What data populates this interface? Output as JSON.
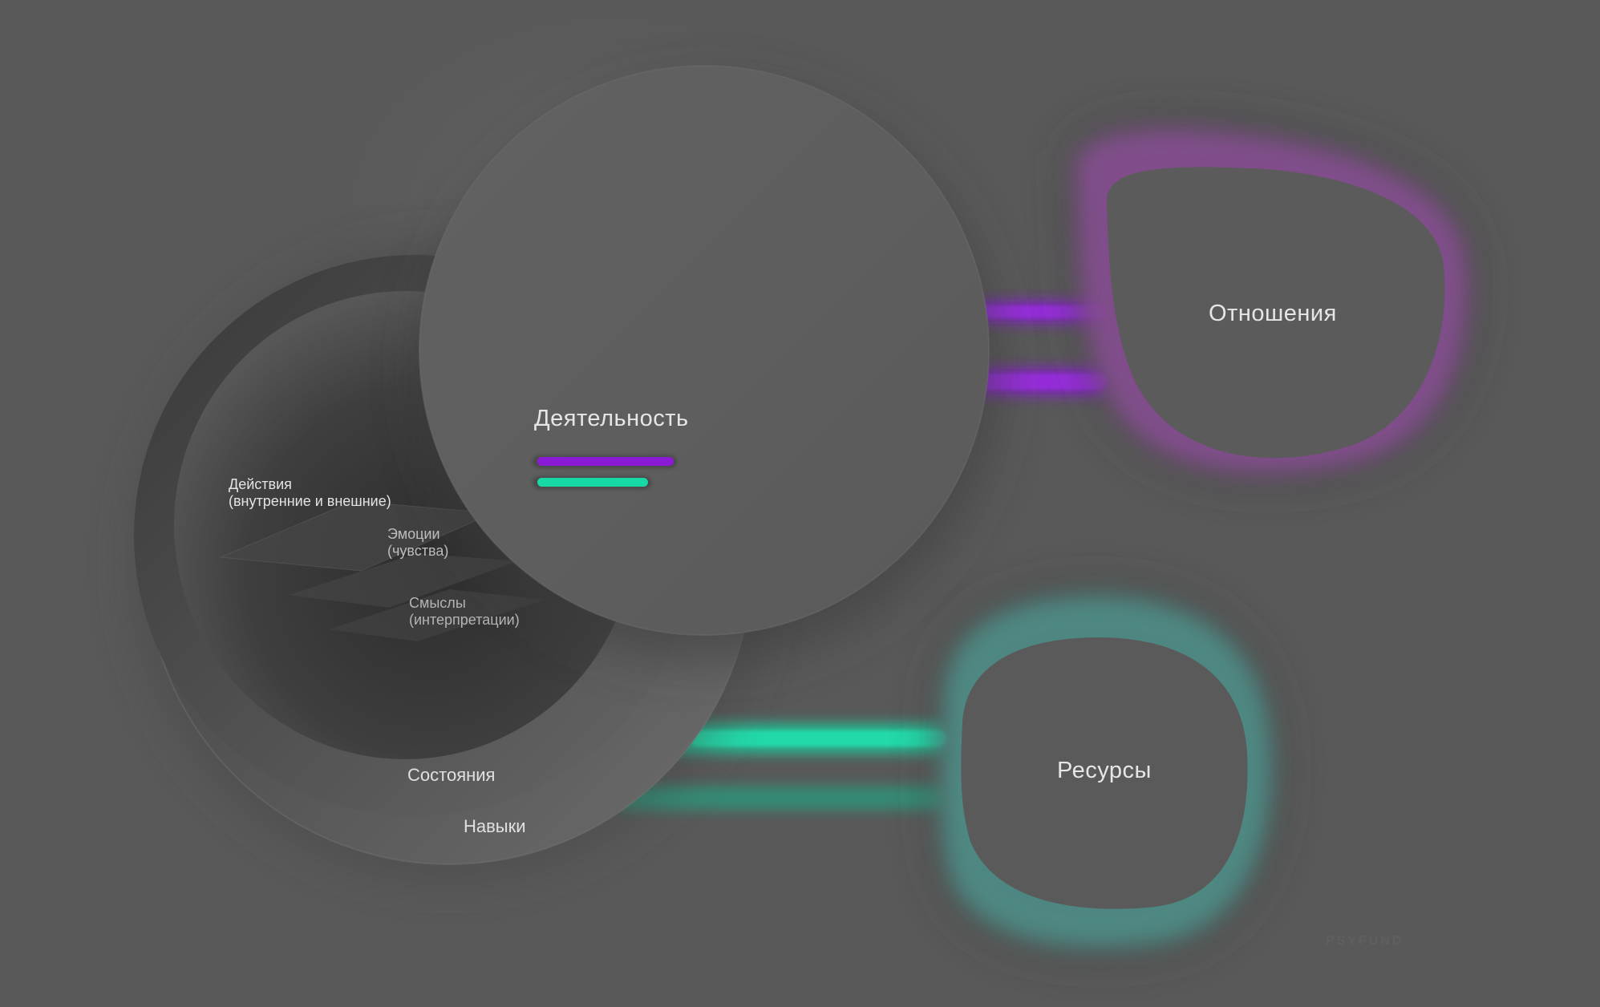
{
  "diagram": {
    "central": {
      "label": "Деятельность"
    },
    "left_group": {
      "outer_label": "Навыки",
      "inner_label": "Состояния",
      "layers": [
        {
          "line1": "Действия",
          "line2": "(внутренние и внешние)"
        },
        {
          "line1": "Эмоции",
          "line2": "(чувства)"
        },
        {
          "line1": "Смыслы",
          "line2": "(интерпретации)"
        }
      ]
    },
    "relations": {
      "label": "Отношения"
    },
    "resources": {
      "label": "Ресурсы"
    },
    "watermark": "PSYFUND"
  },
  "colors": {
    "background": "#595959",
    "purple": "#8b1ad6",
    "teal": "#17d9a6",
    "text": "#e6e6e6"
  }
}
